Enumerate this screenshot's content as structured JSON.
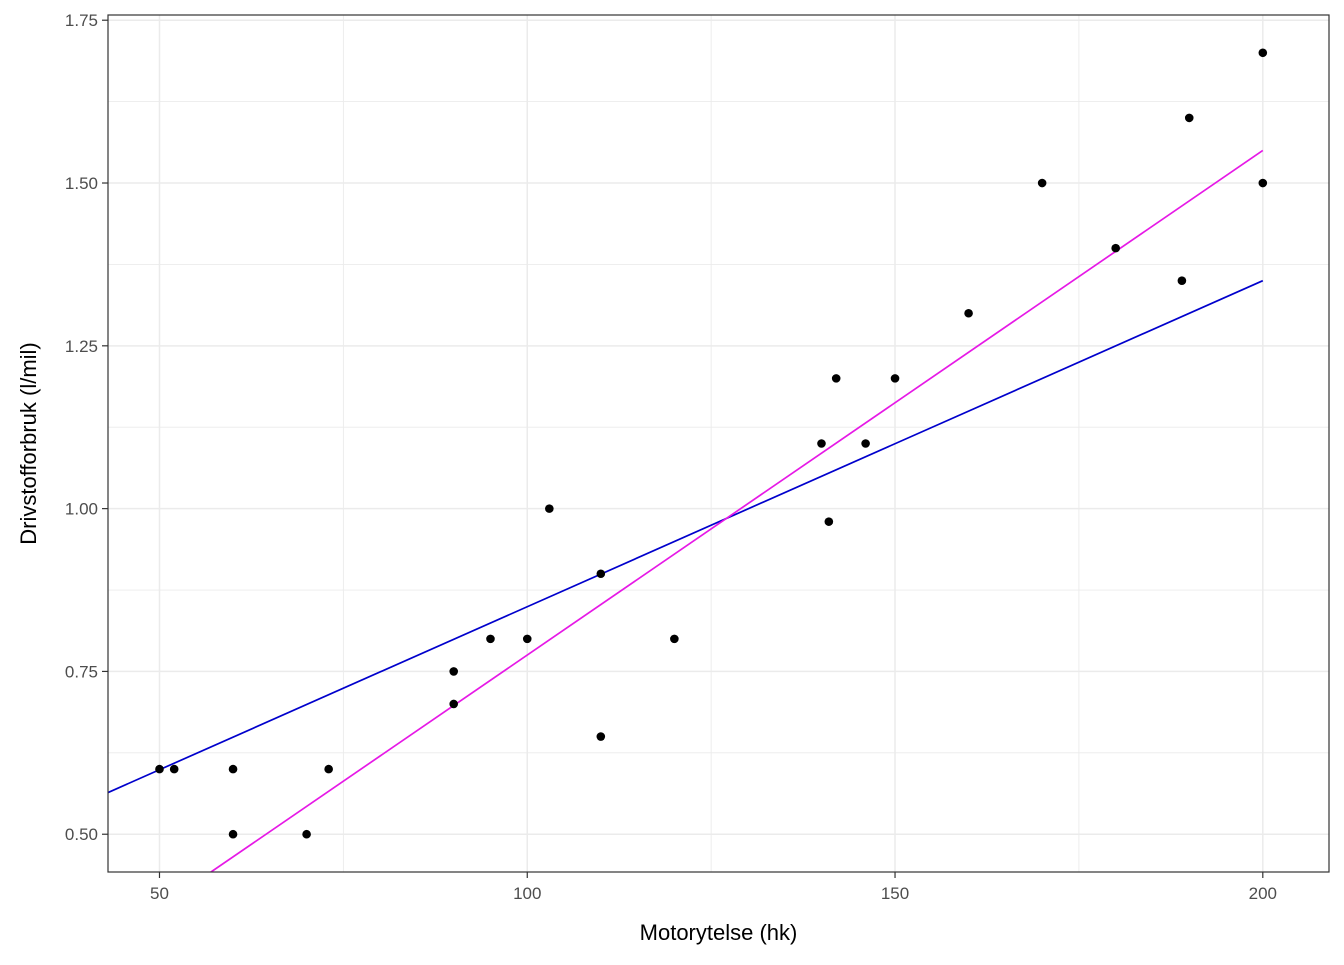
{
  "chart_data": {
    "type": "scatter",
    "title": "",
    "xlabel": "Motorytelse (hk)",
    "ylabel": "Drivstofforbruk (l/mil)",
    "xlim": [
      43,
      209
    ],
    "ylim": [
      0.442,
      1.758
    ],
    "x_ticks": [
      50,
      100,
      150,
      200
    ],
    "x_tick_labels": [
      "50",
      "100",
      "150",
      "200"
    ],
    "y_ticks": [
      0.5,
      0.75,
      1.0,
      1.25,
      1.5,
      1.75
    ],
    "y_tick_labels": [
      "0.50",
      "0.75",
      "1.00",
      "1.25",
      "1.50",
      "1.75"
    ],
    "grid": true,
    "legend": "none",
    "colors": {
      "points": "#000000",
      "line_blue": "#0000cc",
      "line_magenta": "#e619e6",
      "grid": "#ebebeb",
      "panel_border": "#333333"
    },
    "points": [
      {
        "x": 50,
        "y": 0.6
      },
      {
        "x": 52,
        "y": 0.6
      },
      {
        "x": 60,
        "y": 0.6
      },
      {
        "x": 60,
        "y": 0.5
      },
      {
        "x": 70,
        "y": 0.5
      },
      {
        "x": 73,
        "y": 0.6
      },
      {
        "x": 90,
        "y": 0.75
      },
      {
        "x": 90,
        "y": 0.7
      },
      {
        "x": 95,
        "y": 0.8
      },
      {
        "x": 100,
        "y": 0.8
      },
      {
        "x": 103,
        "y": 1.0
      },
      {
        "x": 110,
        "y": 0.9
      },
      {
        "x": 110,
        "y": 0.65
      },
      {
        "x": 120,
        "y": 0.8
      },
      {
        "x": 140,
        "y": 1.1
      },
      {
        "x": 141,
        "y": 0.98
      },
      {
        "x": 142,
        "y": 1.2
      },
      {
        "x": 146,
        "y": 1.1
      },
      {
        "x": 150,
        "y": 1.2
      },
      {
        "x": 160,
        "y": 1.3
      },
      {
        "x": 170,
        "y": 1.5
      },
      {
        "x": 180,
        "y": 1.4
      },
      {
        "x": 189,
        "y": 1.35
      },
      {
        "x": 190,
        "y": 1.6
      },
      {
        "x": 200,
        "y": 1.7
      },
      {
        "x": 200,
        "y": 1.5
      }
    ],
    "lines": [
      {
        "color": "#0000cc",
        "x": [
          43,
          200
        ],
        "y": [
          0.564,
          1.35
        ]
      },
      {
        "color": "#e619e6",
        "x": [
          57,
          200
        ],
        "y": [
          0.442,
          1.55
        ]
      }
    ]
  }
}
